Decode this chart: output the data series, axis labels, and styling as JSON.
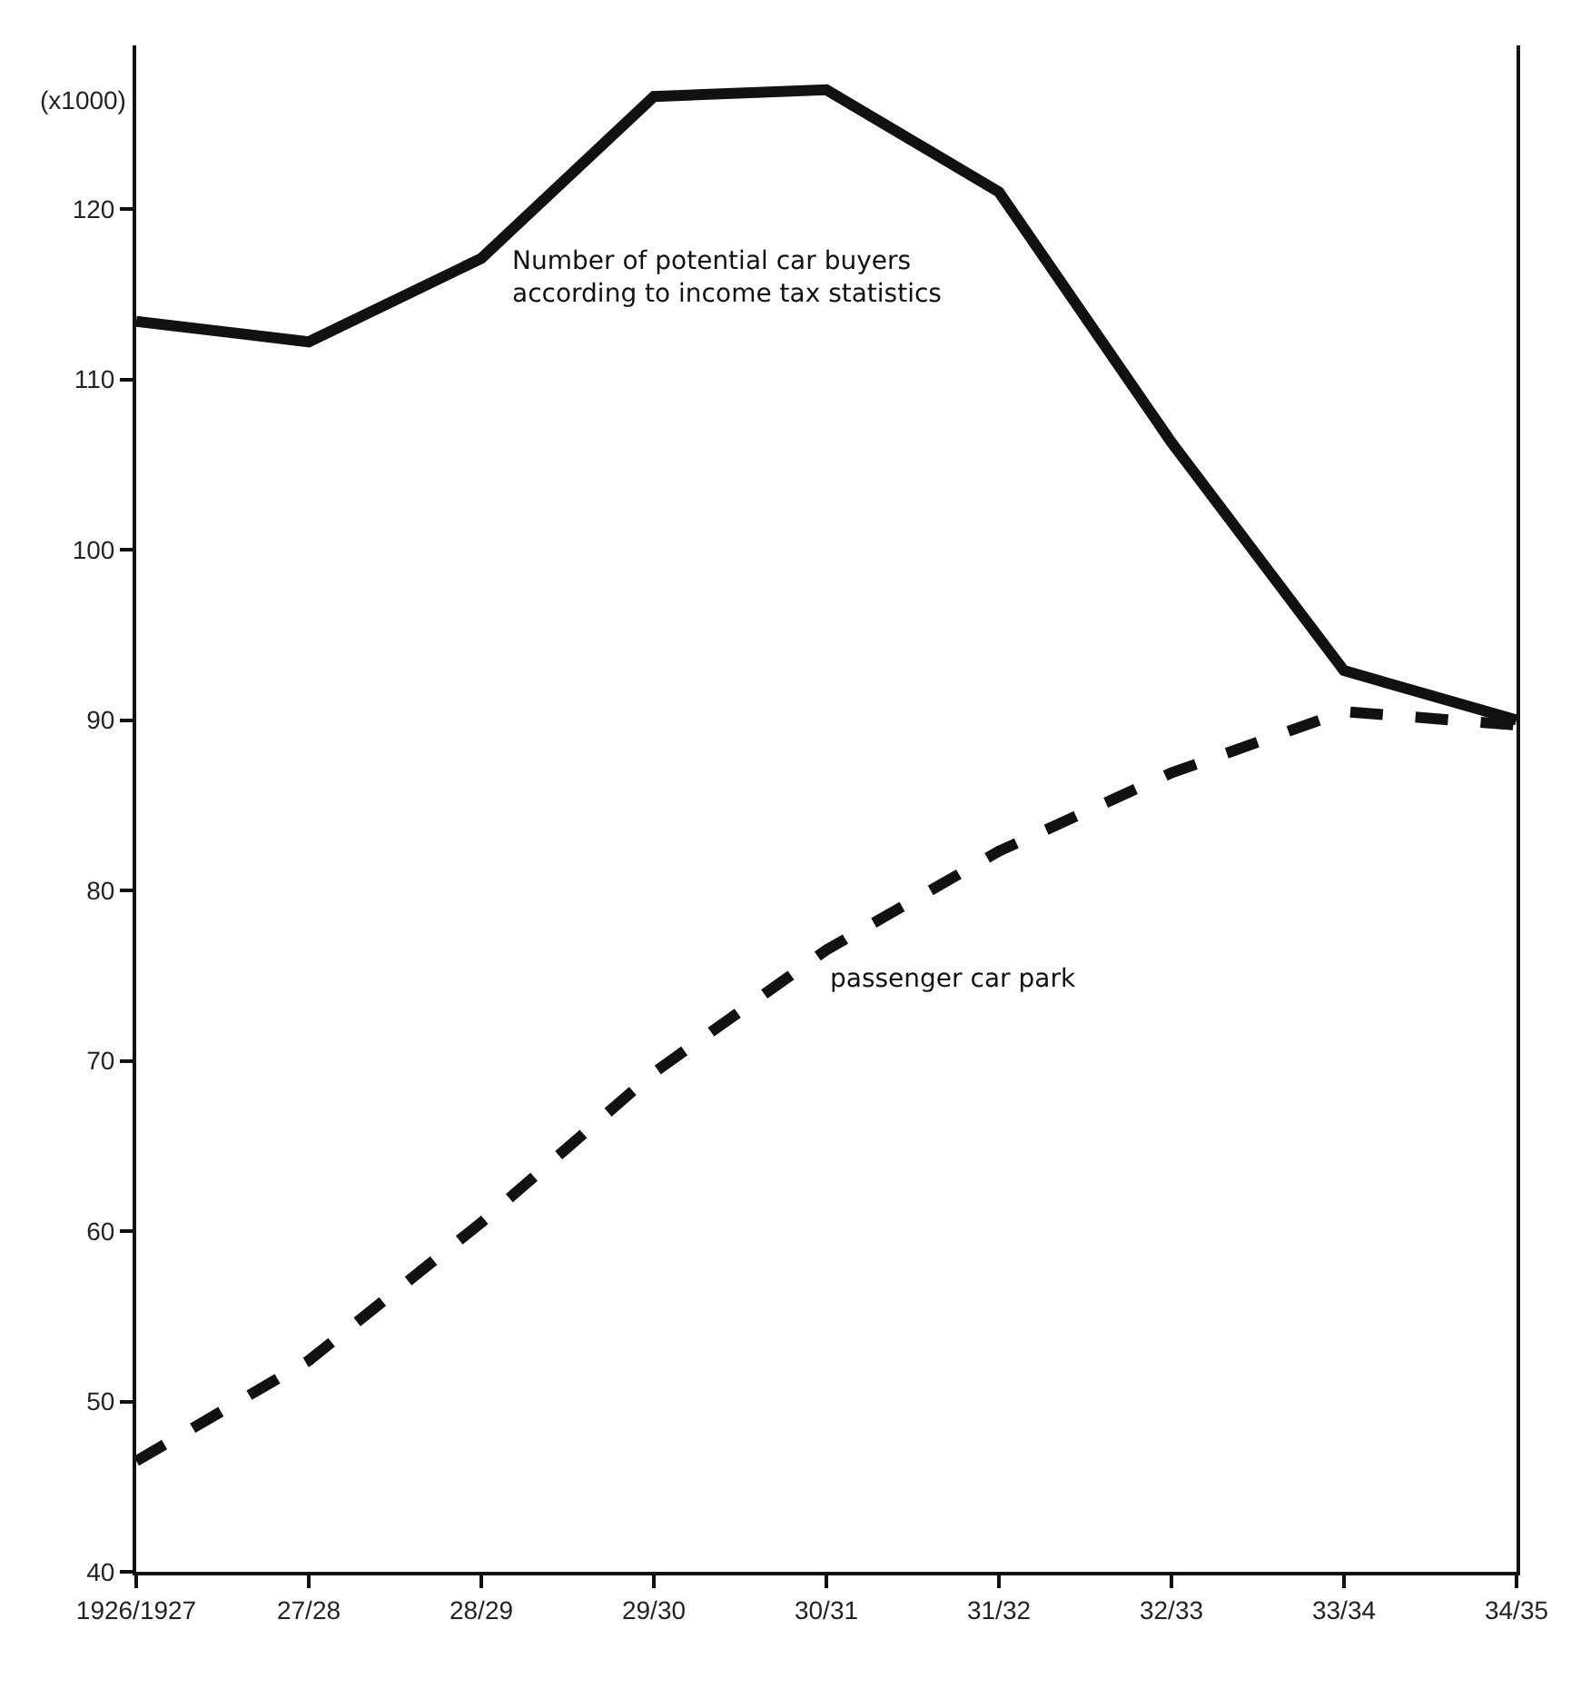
{
  "chart_data": {
    "type": "line",
    "categories": [
      "1926/1927",
      "27/28",
      "28/29",
      "29/30",
      "30/31",
      "31/32",
      "32/33",
      "33/34",
      "34/35"
    ],
    "ylabel": "(x1000)",
    "ylim": [
      40,
      129.6
    ],
    "yticks": [
      40,
      50,
      60,
      70,
      80,
      90,
      100,
      110,
      120
    ],
    "marker": "none",
    "series": [
      {
        "name": "Number of potential car buyers\naccording to income tax statistics",
        "color": "#111111",
        "line_style": "solid",
        "values": [
          113.4,
          112.2,
          117.1,
          126.6,
          127.0,
          121.0,
          106.3,
          92.9,
          90.0
        ]
      },
      {
        "name": "passenger car park",
        "color": "#111111",
        "line_style": "dashed",
        "values": [
          46.5,
          52.4,
          60.5,
          69.3,
          76.5,
          82.3,
          86.9,
          90.5,
          89.7
        ]
      }
    ]
  }
}
